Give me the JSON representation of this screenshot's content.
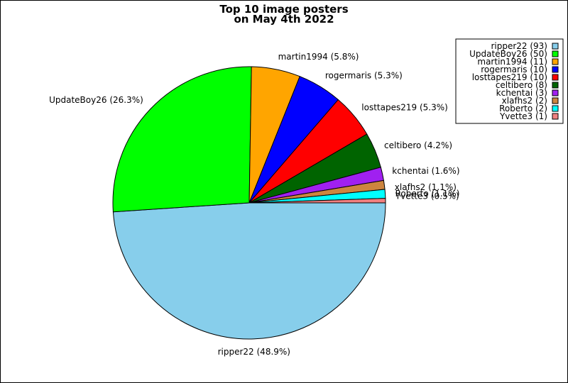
{
  "chart_data": {
    "type": "pie",
    "title": [
      "Top 10 image posters",
      "on May 4th 2022"
    ],
    "start_angle_deg": 0,
    "direction": "clockwise",
    "legend_position": "top-right",
    "slices": [
      {
        "name": "ripper22",
        "value": 93,
        "percent_label": "ripper22 (48.9%)",
        "legend_label": "ripper22 (93)",
        "color": "#87CEEB"
      },
      {
        "name": "UpdateBoy26",
        "value": 50,
        "percent_label": "UpdateBoy26 (26.3%)",
        "legend_label": "UpdateBoy26 (50)",
        "color": "#00FF00"
      },
      {
        "name": "martin1994",
        "value": 11,
        "percent_label": "martin1994 (5.8%)",
        "legend_label": "martin1994 (11)",
        "color": "#FFA500"
      },
      {
        "name": "rogermaris",
        "value": 10,
        "percent_label": "rogermaris (5.3%)",
        "legend_label": "rogermaris (10)",
        "color": "#0000FF"
      },
      {
        "name": "losttapes219",
        "value": 10,
        "percent_label": "losttapes219 (5.3%)",
        "legend_label": "losttapes219 (10)",
        "color": "#FF0000"
      },
      {
        "name": "celtibero",
        "value": 8,
        "percent_label": "celtibero (4.2%)",
        "legend_label": "celtibero (8)",
        "color": "#006400"
      },
      {
        "name": "kchentai",
        "value": 3,
        "percent_label": "kchentai (1.6%)",
        "legend_label": "kchentai (3)",
        "color": "#A020F0"
      },
      {
        "name": "xlafhs2",
        "value": 2,
        "percent_label": "xlafhs2 (1.1%)",
        "legend_label": "xlafhs2 (2)",
        "color": "#CD853F"
      },
      {
        "name": "Roberto",
        "value": 2,
        "percent_label": "Roberto (1.1%)",
        "legend_label": "Roberto (2)",
        "color": "#00FFFF"
      },
      {
        "name": "Yvette3",
        "value": 1,
        "percent_label": "Yvette3 (0.5%)",
        "legend_label": "Yvette3 (1)",
        "color": "#F08080"
      }
    ]
  }
}
